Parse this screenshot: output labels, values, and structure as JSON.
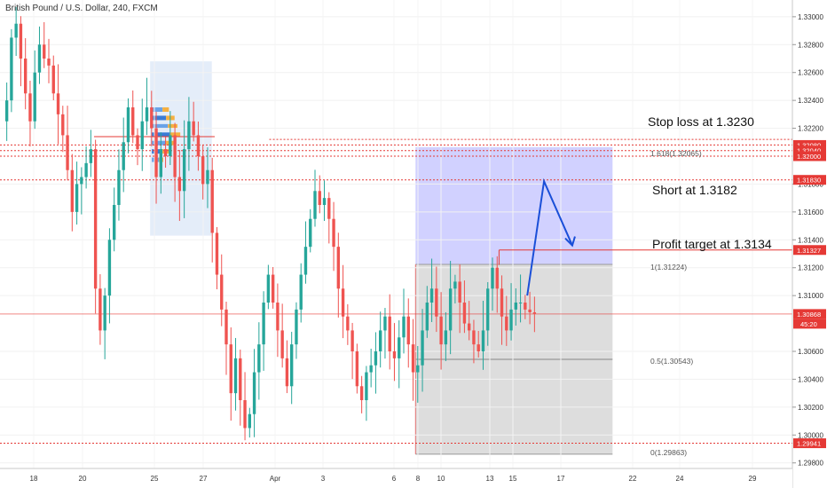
{
  "header": {
    "symbol_label": "British Pound / U.S. Dollar, 240, FXCM"
  },
  "colors": {
    "up": "#26a69a",
    "down": "#ef5350",
    "level": "#e53935",
    "zone_blue": "#c9c9ff",
    "zone_grey": "#d9d9d9",
    "arrow": "#1a4fd8"
  },
  "annotations": {
    "stop": "Stop loss at 1.3230",
    "short": "Short at 1.3182",
    "profit": "Profit target at 1.3134"
  },
  "fib": {
    "f1618": "1.618(1.32065)",
    "f1": "1(1.31224)",
    "f05": "0.5(1.30543)",
    "f0": "0(1.29863)"
  },
  "price_tags": [
    {
      "label": "1.32080",
      "price": 1.3208
    },
    {
      "label": "1.32040",
      "price": 1.3204
    },
    {
      "label": "1.32000",
      "price": 1.32
    },
    {
      "label": "1.31830",
      "price": 1.3183
    },
    {
      "label": "1.31327",
      "price": 1.31327
    },
    {
      "label": "1.30868",
      "price": 1.30868
    },
    {
      "label": "1.29941",
      "price": 1.29941
    }
  ],
  "countdown": "45:20",
  "chart_data": {
    "type": "candlestick",
    "title": "British Pound / U.S. Dollar, 240, FXCM",
    "ylim": [
      1.2976,
      1.3312
    ],
    "y_ticks": [
      "1.33000",
      "1.32800",
      "1.32600",
      "1.32400",
      "1.32200",
      "1.31800",
      "1.31600",
      "1.31400",
      "1.31200",
      "1.31000",
      "1.30600",
      "1.30400",
      "1.30200",
      "1.30000",
      "1.29800"
    ],
    "y_tick_values": [
      1.33,
      1.328,
      1.326,
      1.324,
      1.322,
      1.318,
      1.316,
      1.314,
      1.312,
      1.31,
      1.306,
      1.304,
      1.302,
      1.3,
      1.298
    ],
    "x_ticks": [
      "18",
      "20",
      "25",
      "27",
      "Apr",
      "3",
      "6",
      "8",
      "10",
      "13",
      "15",
      "17",
      "22",
      "24",
      "29"
    ],
    "x_tick_days": [
      0,
      2,
      7,
      9,
      14,
      16,
      19,
      21,
      23,
      26,
      28,
      30,
      35,
      37,
      42
    ],
    "horizontal_levels": [
      1.3208,
      1.3204,
      1.32,
      1.3183,
      1.29941,
      1.30868
    ],
    "fibonacci": {
      "1.618": 1.32065,
      "1": 1.31224,
      "0.5": 1.30543,
      "0": 1.29863
    },
    "zones": [
      {
        "name": "stop",
        "from": 1.31224,
        "to": 1.32065,
        "start_day": 20.8,
        "end_day": 33.6
      },
      {
        "name": "target",
        "from": 1.29863,
        "to": 1.31224,
        "start_day": 20.8,
        "end_day": 33.6
      }
    ],
    "projection": [
      [
        28.6,
        1.31
      ],
      [
        29.3,
        1.3182
      ],
      [
        30.8,
        1.3136
      ]
    ],
    "candles_per_day": 6,
    "close_path": [
      1.324,
      1.3285,
      1.3295,
      1.327,
      1.3245,
      1.3225,
      1.326,
      1.328,
      1.327,
      1.3265,
      1.3245,
      1.323,
      1.3215,
      1.319,
      1.316,
      1.318,
      1.3185,
      1.3195,
      1.3205,
      1.3105,
      1.3075,
      1.31,
      1.314,
      1.3165,
      1.319,
      1.321,
      1.3235,
      1.3215,
      1.3205,
      1.3225,
      1.3235,
      1.322,
      1.3185,
      1.3205,
      1.32,
      1.3215,
      1.3185,
      1.3175,
      1.3205,
      1.3225,
      1.3215,
      1.32,
      1.318,
      1.319,
      1.3145,
      1.3115,
      1.309,
      1.3065,
      1.303,
      1.3055,
      1.3025,
      1.3005,
      1.3015,
      1.3045,
      1.3065,
      1.3095,
      1.3115,
      1.3095,
      1.3075,
      1.3055,
      1.3035,
      1.3065,
      1.309,
      1.3115,
      1.3135,
      1.3155,
      1.3175,
      1.3165,
      1.317,
      1.3155,
      1.3135,
      1.3105,
      1.3085,
      1.3075,
      1.306,
      1.3035,
      1.3025,
      1.3045,
      1.305,
      1.306,
      1.3075,
      1.3085,
      1.306,
      1.3055,
      1.307,
      1.3085,
      1.3065,
      1.3045,
      1.305,
      1.3075,
      1.3095,
      1.3105,
      1.3085,
      1.3065,
      1.3075,
      1.3105,
      1.311,
      1.3095,
      1.308,
      1.3075,
      1.3065,
      1.306,
      1.3075,
      1.3105,
      1.312,
      1.3105,
      1.3085,
      1.3075,
      1.309,
      1.3095,
      1.3095,
      1.309,
      1.3088,
      1.3087
    ]
  }
}
